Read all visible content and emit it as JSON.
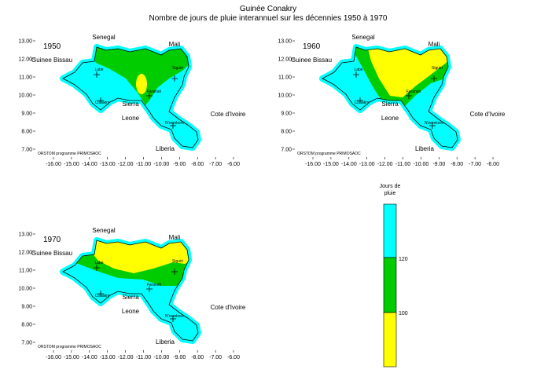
{
  "title": "Guinée Conakry",
  "subtitle": "Nombre de jours de pluie interannuel sur les décennies 1950 à 1970",
  "xticks": [
    {
      "value": -16,
      "label": "-16.00"
    },
    {
      "value": -15,
      "label": "-15.00"
    },
    {
      "value": -14,
      "label": "-14.00"
    },
    {
      "value": -13,
      "label": "-13.00"
    },
    {
      "value": -12,
      "label": "-12.00"
    },
    {
      "value": -11,
      "label": "-11.00"
    },
    {
      "value": -10,
      "label": "-10.00"
    },
    {
      "value": -9,
      "label": "-9.00"
    },
    {
      "value": -8,
      "label": "-8.00"
    },
    {
      "value": -7,
      "label": "-7.00"
    },
    {
      "value": -6,
      "label": "-6.00"
    }
  ],
  "yticks": [
    {
      "value": 7,
      "label": "7.00"
    },
    {
      "value": 8,
      "label": "8.00"
    },
    {
      "value": 9,
      "label": "9.00"
    },
    {
      "value": 10,
      "label": "10.00"
    },
    {
      "value": 11,
      "label": "11.00"
    },
    {
      "value": 12,
      "label": "12.00"
    },
    {
      "value": 13,
      "label": "13.00"
    }
  ],
  "countries": {
    "senegal": "Senegal",
    "mali": "Mali",
    "guinee_bissau": "Guinee  Bissau",
    "sierra_leone": [
      "Sierra",
      "Leone"
    ],
    "cote_divoire": "Cote d'Ivoire",
    "liberia": "Liberia"
  },
  "cities": [
    "Labe",
    "Siguiri",
    "Conakry",
    "Faranah",
    "N'zerekore"
  ],
  "credit": "ORSTOM programme PRIMOSAOC",
  "maps": [
    {
      "year": "1950"
    },
    {
      "year": "1960"
    },
    {
      "year": "1970"
    }
  ],
  "legend": {
    "title": [
      "Jours de",
      "pluie"
    ],
    "levels": [
      "120",
      "100"
    ]
  }
}
